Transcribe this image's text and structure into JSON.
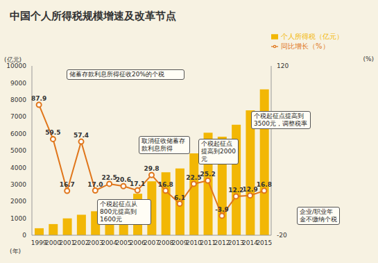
{
  "chart_data": {
    "type": "bar",
    "title": "中国个人所得税规模增速及改革节点",
    "categories": [
      "1999",
      "2000",
      "2001",
      "2002",
      "2003",
      "2004",
      "2005",
      "2006",
      "2007",
      "2008",
      "2009",
      "2010",
      "2011",
      "2012",
      "2013",
      "2014",
      "2015"
    ],
    "series": [
      {
        "name": "个人所得税（亿元）",
        "type": "bar",
        "color": "#f2b705",
        "values": [
          414,
          660,
          996,
          1211,
          1418,
          1737,
          2094,
          2453,
          3185,
          3722,
          3949,
          4837,
          6054,
          5820,
          6531,
          7377,
          8618
        ]
      },
      {
        "name": "同比增长（%）",
        "type": "line",
        "axis": "y2",
        "color": "#e0761b",
        "marker": "circle",
        "data_labels": true,
        "values": [
          87.9,
          59.5,
          16.7,
          57.4,
          17.0,
          22.5,
          20.6,
          17.1,
          29.8,
          16.8,
          6.1,
          22.5,
          25.2,
          -3.9,
          12.2,
          12.9,
          16.8
        ],
        "value_labels": [
          "87.9",
          "59.5",
          "16.7",
          "57.4",
          "17.0",
          "22.5",
          "20.6",
          "17.1",
          "29.8",
          "16.8",
          "6.1",
          "22.5",
          "25.2",
          "-3.9",
          "12.2",
          "12.9",
          "16.8"
        ]
      }
    ],
    "ylim": [
      0,
      10000
    ],
    "yticks": [
      0,
      1000,
      2000,
      3000,
      4000,
      5000,
      6000,
      7000,
      8000,
      9000,
      10000
    ],
    "y2lim": [
      -20,
      120
    ],
    "y2ticks": [
      -20,
      120
    ],
    "y_label": "(亿元)",
    "y2_label": "(%)",
    "x_label": "(年)",
    "legend": "upper right",
    "grid": false,
    "annotations": [
      "储蓄存款利息所得征收20%的个税",
      "个税起征点从800元提高到1600元",
      "取消征收储蓄存款利息所得",
      "个税起征点提高到2000元",
      "个税起征点提高到3500元，调整税率",
      "企业/职业年金不缴纳个税"
    ]
  }
}
